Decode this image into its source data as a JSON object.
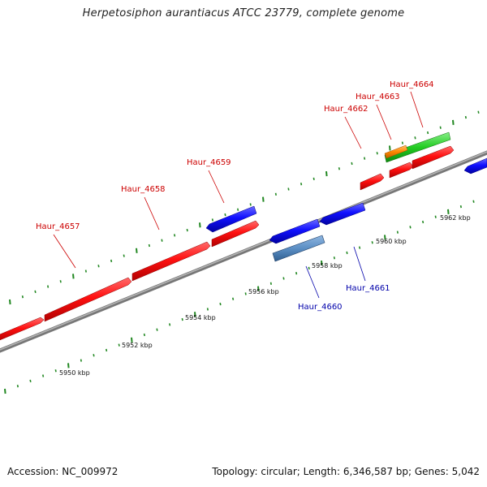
{
  "title": "Herpetosiphon aurantiacus ATCC 23779, complete genome",
  "footer": {
    "accession": "Accession: NC_009972",
    "summary": "Topology: circular; Length: 6,346,587 bp; Genes: 5,042"
  },
  "colors": {
    "forward_gene": "#ff0000",
    "reverse_gene": "#0000ff",
    "selected_gene": "#5b8ec4",
    "green_feature": "#22cc22",
    "orange_feature": "#ff8800",
    "backbone": "#808080",
    "tick": "#228822",
    "forward_label": "#cc0000",
    "reverse_label": "#0000aa"
  },
  "scale_labels": [
    "5950 kbp",
    "5952 kbp",
    "5954 kbp",
    "5956 kbp",
    "5958 kbp",
    "5960 kbp",
    "5962 kbp"
  ],
  "gene_labels": {
    "g4657": "Haur_4657",
    "g4658": "Haur_4658",
    "g4659": "Haur_4659",
    "g4660": "Haur_4660",
    "g4661": "Haur_4661",
    "g4662": "Haur_4662",
    "g4663": "Haur_4663",
    "g4664": "Haur_4664"
  }
}
